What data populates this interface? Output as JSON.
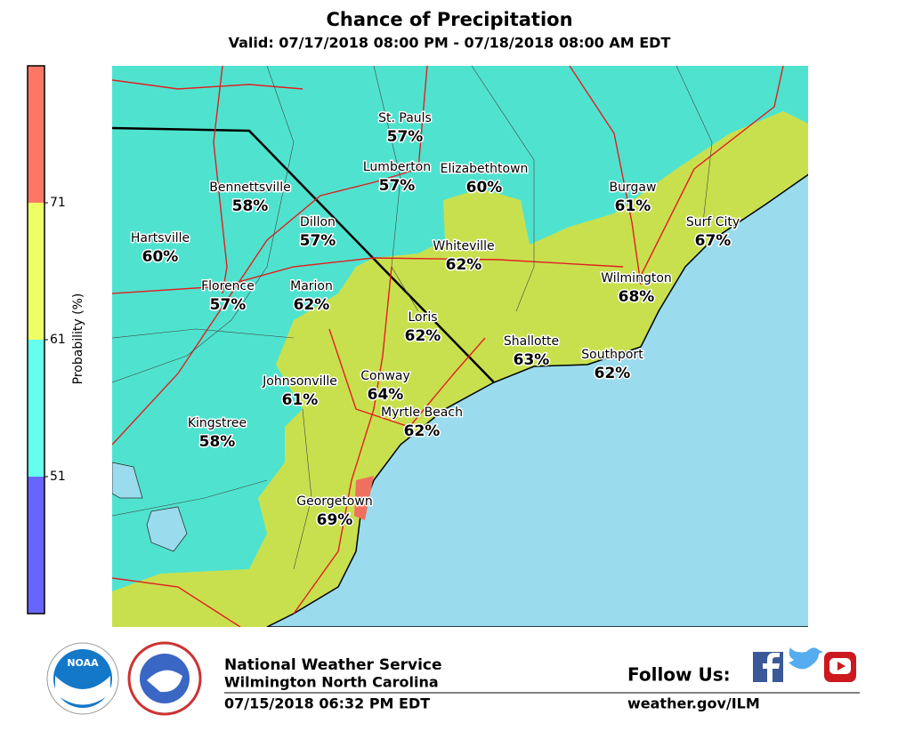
{
  "header": {
    "title": "Chance of Precipitation",
    "subtitle": "Valid: 07/17/2018 08:00 PM - 07/18/2018 08:00 AM EDT"
  },
  "legend": {
    "label": "Probability (%)",
    "range": [
      41,
      81
    ],
    "ticks": [
      51,
      61,
      71
    ],
    "colors": [
      "#6666ff",
      "#66ffee",
      "#eeff66",
      "#ff7766"
    ]
  },
  "cities": [
    {
      "name": "St. Pauls",
      "value": "57%"
    },
    {
      "name": "Lumberton",
      "value": "57%"
    },
    {
      "name": "Elizabethtown",
      "value": "60%"
    },
    {
      "name": "Bennettsville",
      "value": "58%"
    },
    {
      "name": "Burgaw",
      "value": "61%"
    },
    {
      "name": "Dillon",
      "value": "57%"
    },
    {
      "name": "Surf City",
      "value": "67%"
    },
    {
      "name": "Hartsville",
      "value": "60%"
    },
    {
      "name": "Whiteville",
      "value": "62%"
    },
    {
      "name": "Florence",
      "value": "57%"
    },
    {
      "name": "Marion",
      "value": "62%"
    },
    {
      "name": "Wilmington",
      "value": "68%"
    },
    {
      "name": "Loris",
      "value": "62%"
    },
    {
      "name": "Shallotte",
      "value": "63%"
    },
    {
      "name": "Southport",
      "value": "62%"
    },
    {
      "name": "Conway",
      "value": "64%"
    },
    {
      "name": "Johnsonville",
      "value": "61%"
    },
    {
      "name": "Myrtle Beach",
      "value": "62%"
    },
    {
      "name": "Kingstree",
      "value": "58%"
    },
    {
      "name": "Georgetown",
      "value": "69%"
    }
  ],
  "footer": {
    "office": "National Weather Service",
    "location": "Wilmington North Carolina",
    "issued": "07/15/2018 06:32 PM EDT",
    "follow": "Follow Us:",
    "url": "weather.gov/ILM",
    "logo": "NOAA"
  }
}
